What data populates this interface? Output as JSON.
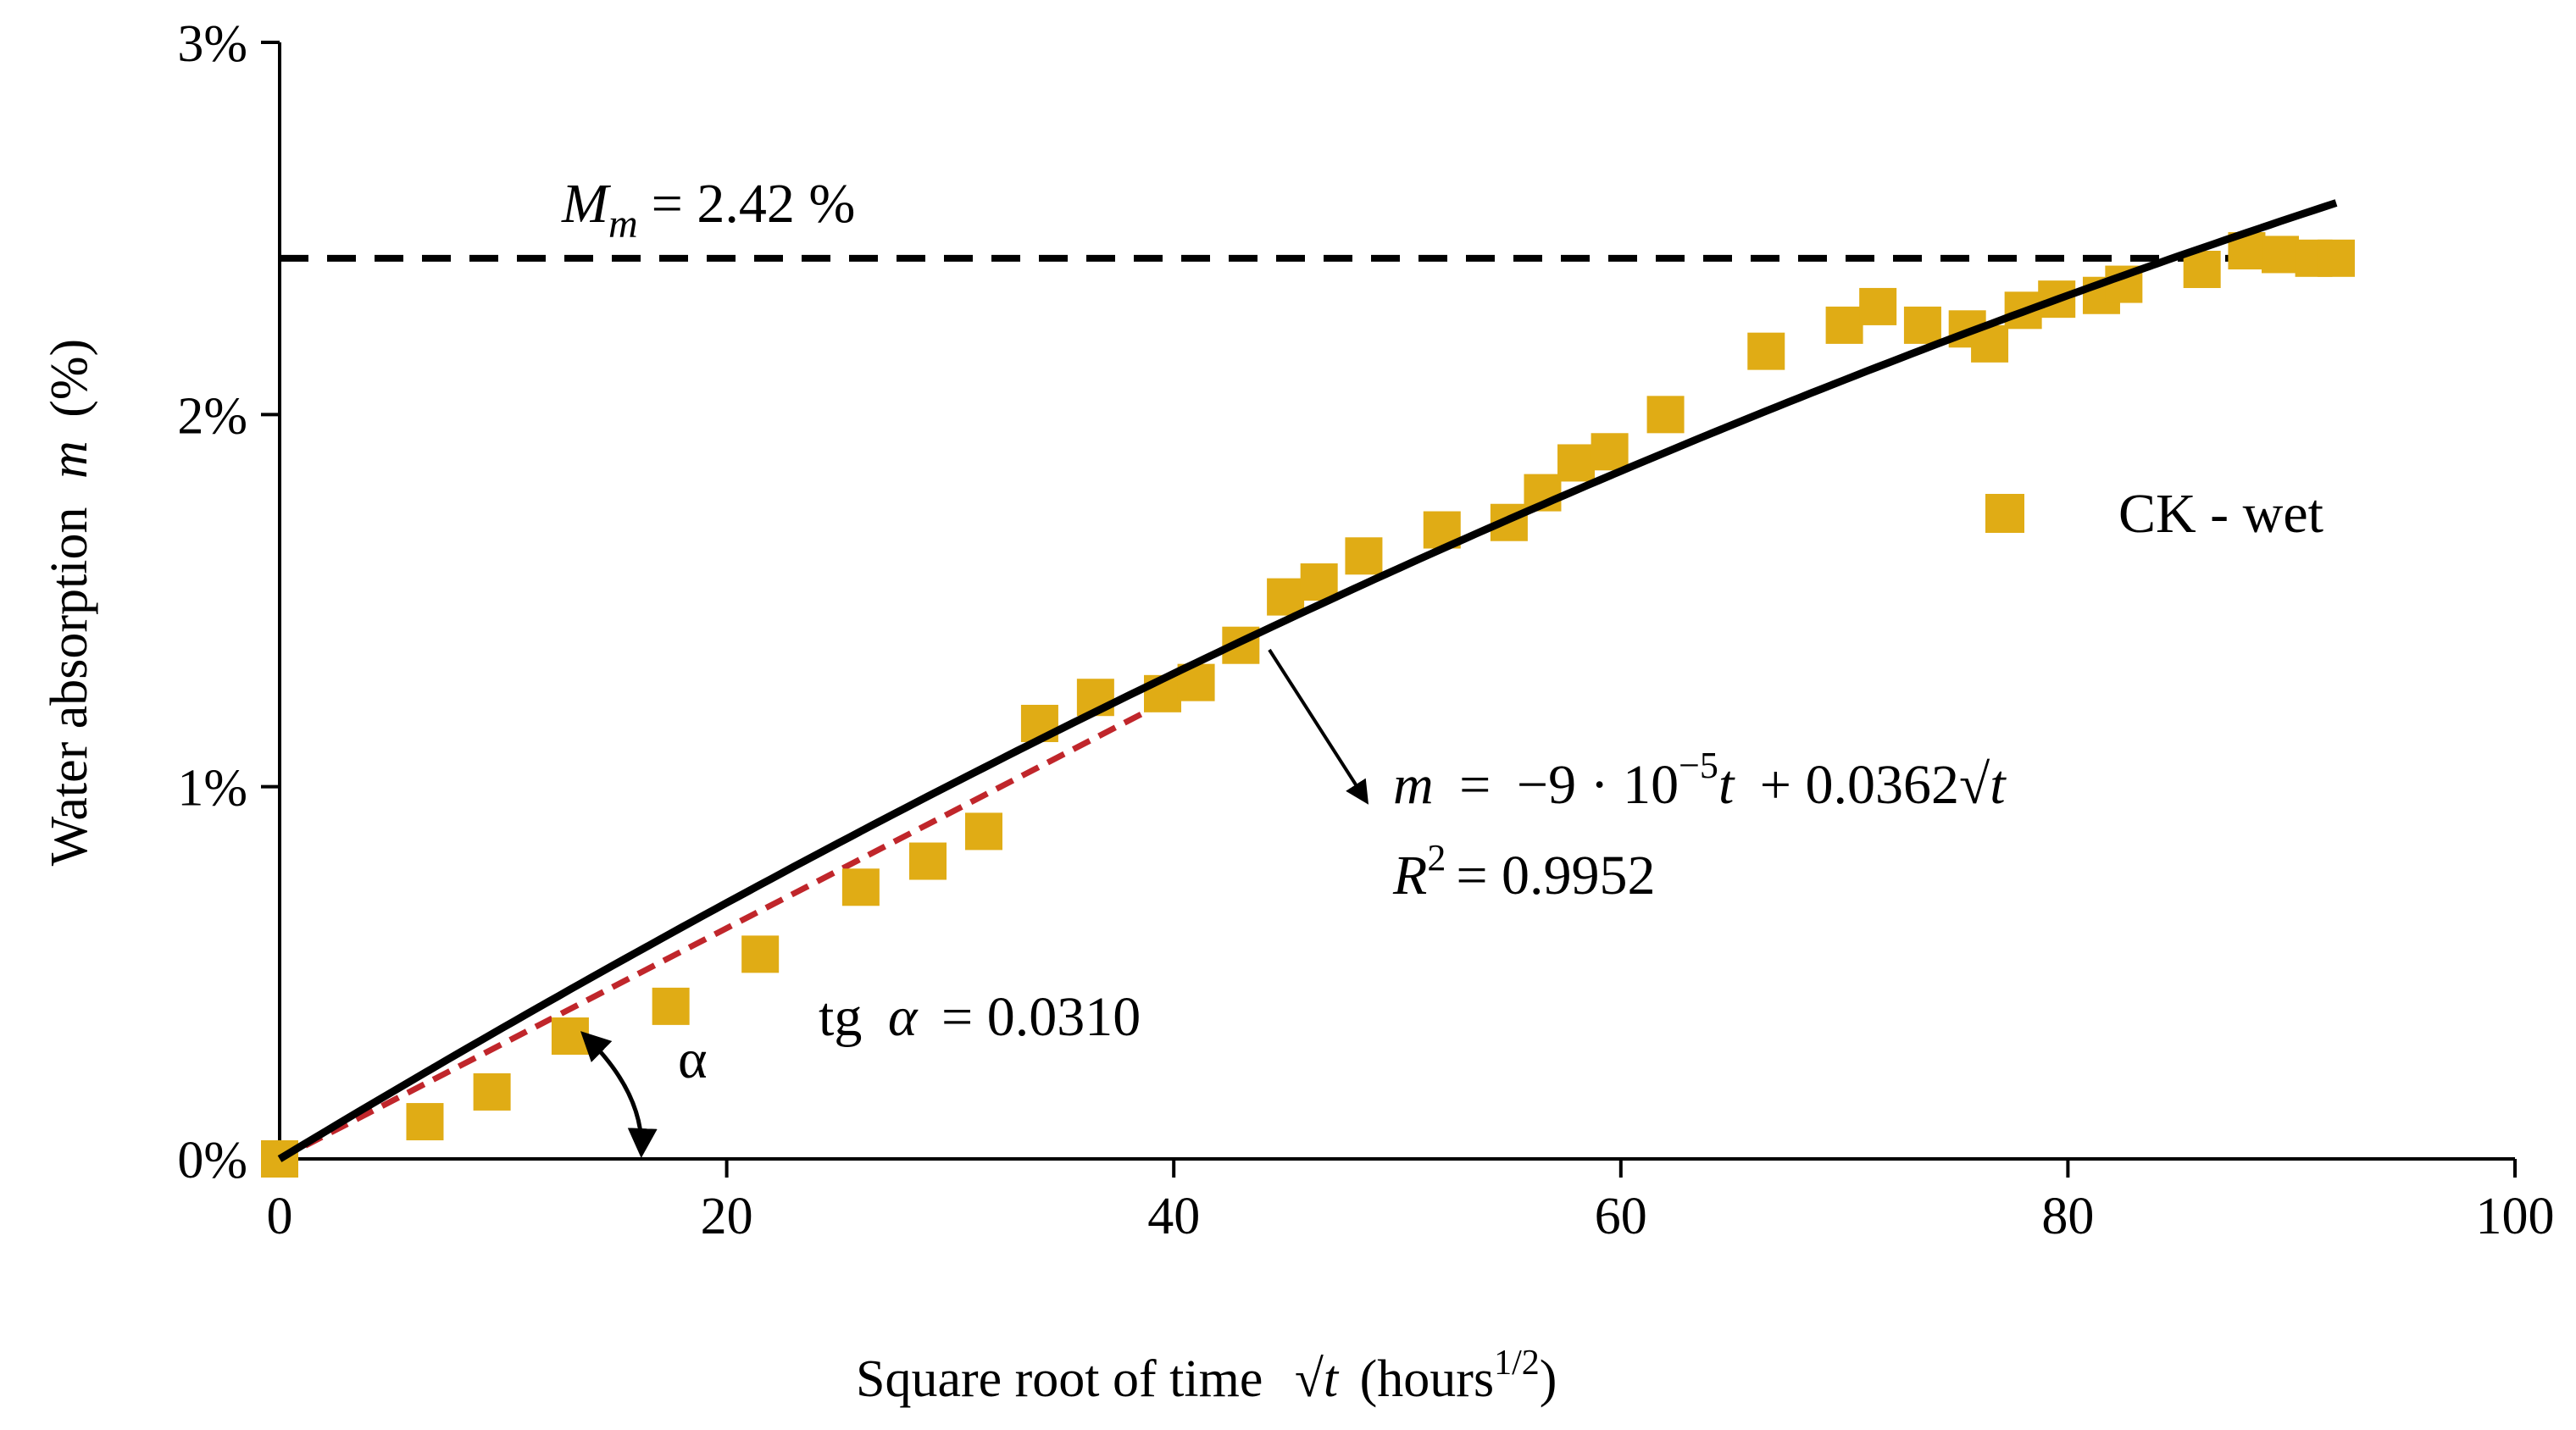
{
  "chart_data": {
    "type": "scatter",
    "title": "",
    "xlabel": {
      "prefix": "Square root of time",
      "sqrt_symbol": "√",
      "variable": "t",
      "units": "(hours",
      "units_exp": "1/2",
      "units_close": ")"
    },
    "ylabel": {
      "prefix": "Water absorption",
      "variable": "m",
      "suffix": "(%)"
    },
    "xlim": [
      0,
      100
    ],
    "ylim": [
      0,
      3
    ],
    "xticks": [
      0,
      20,
      40,
      60,
      80,
      100
    ],
    "yticks": [
      0,
      1,
      2,
      3
    ],
    "ytick_labels": [
      "0%",
      "1%",
      "2%",
      "3%"
    ],
    "grid": false,
    "legend_position": "right",
    "series": [
      {
        "name": "CK - wet",
        "kind": "scatter",
        "marker": "square",
        "color": "#e0ac15",
        "points": [
          [
            0,
            0.0
          ],
          [
            6.5,
            0.1
          ],
          [
            9.5,
            0.18
          ],
          [
            13,
            0.33
          ],
          [
            17.5,
            0.41
          ],
          [
            21.5,
            0.55
          ],
          [
            26,
            0.73
          ],
          [
            29,
            0.8
          ],
          [
            31.5,
            0.88
          ],
          [
            34,
            1.17
          ],
          [
            36.5,
            1.24
          ],
          [
            39.5,
            1.25
          ],
          [
            41,
            1.28
          ],
          [
            43,
            1.38
          ],
          [
            45,
            1.51
          ],
          [
            46.5,
            1.55
          ],
          [
            48.5,
            1.62
          ],
          [
            52,
            1.69
          ],
          [
            55,
            1.71
          ],
          [
            56.5,
            1.79
          ],
          [
            58,
            1.87
          ],
          [
            59.5,
            1.9
          ],
          [
            62,
            2.0
          ],
          [
            66.5,
            2.17
          ],
          [
            70,
            2.24
          ],
          [
            71.5,
            2.29
          ],
          [
            73.5,
            2.24
          ],
          [
            75.5,
            2.23
          ],
          [
            76.5,
            2.19
          ],
          [
            78,
            2.28
          ],
          [
            79.5,
            2.31
          ],
          [
            81.5,
            2.32
          ],
          [
            82.5,
            2.35
          ],
          [
            86,
            2.39
          ],
          [
            88,
            2.44
          ],
          [
            89.5,
            2.43
          ],
          [
            91,
            2.42
          ],
          [
            92,
            2.42
          ]
        ]
      },
      {
        "name": "fit",
        "kind": "curve",
        "color": "#000000",
        "coef_t": -9e-05,
        "coef_sqrt_t": 0.0362,
        "x_range": [
          0,
          92
        ]
      },
      {
        "name": "initial slope",
        "kind": "line",
        "color": "#c0262b",
        "slope": 0.031,
        "x_range": [
          0,
          40
        ]
      },
      {
        "name": "Mm",
        "kind": "hline",
        "color": "#000000",
        "y": 2.42,
        "x_range": [
          0,
          92
        ]
      }
    ],
    "annotations": {
      "mm_label": {
        "symbol": "M",
        "subscript": "m",
        "text": "= 2.42 %"
      },
      "equation": {
        "var": "m",
        "eq": "=",
        "coef1": "−9 · 10",
        "exp": "−5",
        "t1": "t",
        "plus": "+ 0.0362",
        "sqrt": "√",
        "t2": "t"
      },
      "r2": {
        "symbol": "R",
        "exp": "2",
        "text": "= 0.9952"
      },
      "tg": {
        "prefix": "tg",
        "alpha": "α",
        "text": "= 0.0310"
      },
      "alpha_label": "α"
    }
  }
}
